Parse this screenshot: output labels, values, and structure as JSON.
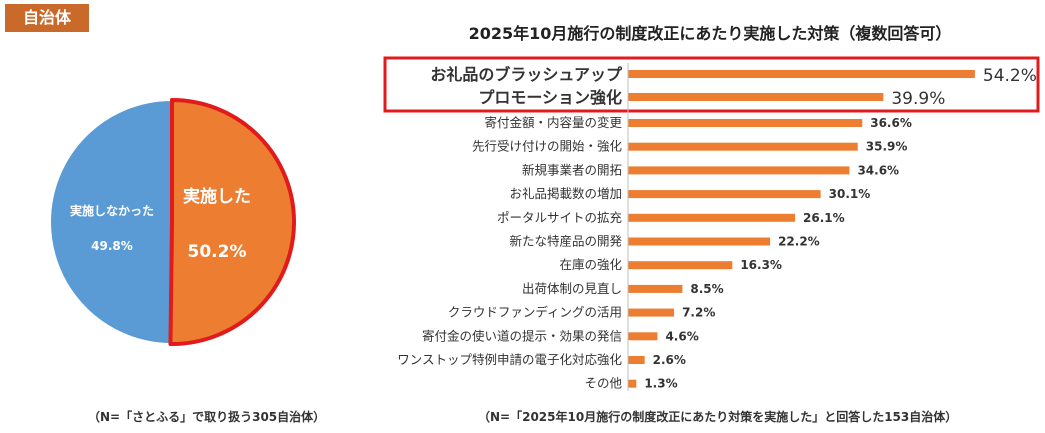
{
  "badge": "自治体",
  "pie": {
    "type": "pie",
    "slices": [
      {
        "label": "実施した",
        "value_label": "50.2%",
        "value": 50.2,
        "color": "#ed7d31"
      },
      {
        "label": "実施しなかった",
        "value_label": "49.8%",
        "value": 49.8,
        "color": "#5b9bd5"
      }
    ],
    "highlight_color": "#e11b1b"
  },
  "pie_note": "（N=「さとふる」で取り扱う305自治体）",
  "bar_note": "（N=「2025年10月施行の制度改正にあたり対策を実施した」と回答した153自治体）",
  "chart_data": {
    "type": "bar",
    "orientation": "horizontal",
    "title": "2025年10月施行の制度改正にあたり実施した対策（複数回答可）",
    "categories": [
      "お礼品のブラッシュアップ",
      "プロモーション強化",
      "寄付金額・内容量の変更",
      "先行受け付けの開始・強化",
      "新規事業者の開拓",
      "お礼品掲載数の増加",
      "ポータルサイトの拡充",
      "新たな特産品の開発",
      "在庫の強化",
      "出荷体制の見直し",
      "クラウドファンディングの活用",
      "寄付金の使い道の提示・効果の発信",
      "ワンストップ特例申請の電子化対応強化",
      "その他"
    ],
    "values": [
      54.2,
      39.9,
      36.6,
      35.9,
      34.6,
      30.1,
      26.1,
      22.2,
      16.3,
      8.5,
      7.2,
      4.6,
      2.6,
      1.3
    ],
    "value_labels": [
      "54.2%",
      "39.9%",
      "36.6%",
      "35.9%",
      "34.6%",
      "30.1%",
      "26.1%",
      "22.2%",
      "16.3%",
      "8.5%",
      "7.2%",
      "4.6%",
      "2.6%",
      "1.3%"
    ],
    "highlighted_top": 2,
    "bar_color": "#ed7d31",
    "highlight_color": "#e11b1b",
    "xlim": [
      0,
      60
    ]
  }
}
